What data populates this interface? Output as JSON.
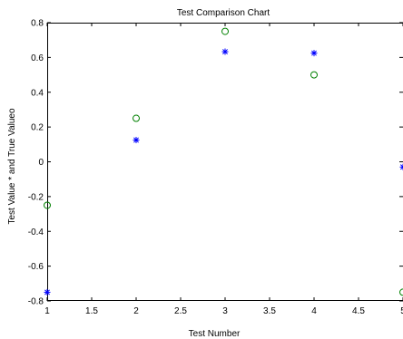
{
  "chart_data": {
    "type": "scatter",
    "title": "Test Comparison Chart",
    "xlabel": "Test Number",
    "ylabel": "Test Value * and True Valueo",
    "xlim": [
      1,
      5
    ],
    "ylim": [
      -0.8,
      0.8
    ],
    "xticks": [
      1,
      1.5,
      2,
      2.5,
      3,
      3.5,
      4,
      4.5,
      5
    ],
    "yticks": [
      -0.8,
      -0.6,
      -0.4,
      -0.2,
      0,
      0.2,
      0.4,
      0.6,
      0.8
    ],
    "grid": false,
    "series": [
      {
        "marker": "asterisk",
        "color": "#0000ff",
        "x": [
          1,
          2,
          3,
          4,
          5
        ],
        "y": [
          -0.75,
          0.125,
          0.633,
          0.625,
          -0.03
        ]
      },
      {
        "marker": "circle",
        "color": "#008000",
        "x": [
          1,
          2,
          3,
          4,
          5
        ],
        "y": [
          -0.25,
          0.25,
          0.75,
          0.5,
          -0.75
        ]
      }
    ]
  }
}
